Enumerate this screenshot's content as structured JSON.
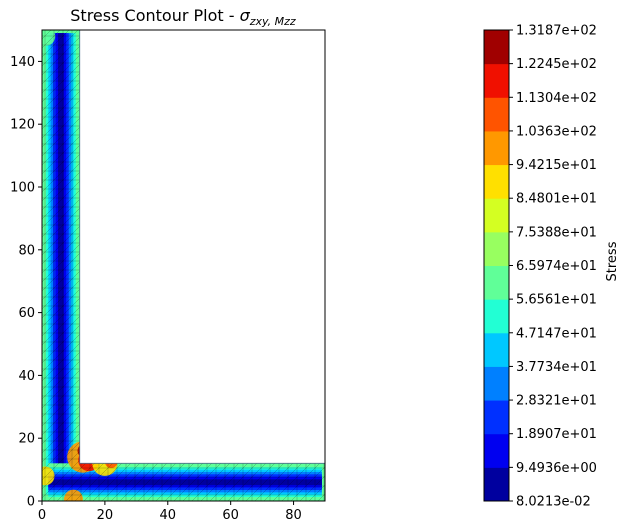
{
  "chart_data": {
    "type": "heatmap",
    "title": "Stress Contour Plot - ",
    "title_math": "σ",
    "title_subscript": "zxy, Mzz",
    "xlabel": "",
    "ylabel": "",
    "xlim": [
      0,
      90
    ],
    "ylim": [
      0,
      150
    ],
    "x_ticks": [
      "0",
      "20",
      "40",
      "60",
      "80"
    ],
    "y_ticks": [
      "0",
      "20",
      "40",
      "60",
      "80",
      "100",
      "120",
      "140"
    ],
    "colorbar": {
      "label": "Stress",
      "levels": [
        {
          "value": 0.080213,
          "label": "8.0213e-02",
          "color": "#00009f"
        },
        {
          "value": 9.4936,
          "label": "9.4936e+00",
          "color": "#0000f0"
        },
        {
          "value": 18.907,
          "label": "1.8907e+01",
          "color": "#0030ff"
        },
        {
          "value": 28.321,
          "label": "2.8321e+01",
          "color": "#0080ff"
        },
        {
          "value": 37.734,
          "label": "3.7734e+01",
          "color": "#00c8ff"
        },
        {
          "value": 47.147,
          "label": "4.7147e+01",
          "color": "#22ffd4"
        },
        {
          "value": 56.561,
          "label": "5.6561e+01",
          "color": "#60ff98"
        },
        {
          "value": 65.974,
          "label": "6.5974e+01",
          "color": "#98ff60"
        },
        {
          "value": 75.388,
          "label": "7.5388e+01",
          "color": "#d4ff22"
        },
        {
          "value": 84.801,
          "label": "8.4801e+01",
          "color": "#ffe000"
        },
        {
          "value": 94.215,
          "label": "9.4215e+01",
          "color": "#ff9800"
        },
        {
          "value": 103.63,
          "label": "1.0363e+02",
          "color": "#ff5400"
        },
        {
          "value": 113.04,
          "label": "1.1304e+02",
          "color": "#f01000"
        },
        {
          "value": 122.45,
          "label": "1.2245e+02",
          "color": "#a00000"
        },
        {
          "value": 131.87,
          "label": "1.3187e+02",
          "color": null
        }
      ]
    },
    "geometry": {
      "shape": "L-section",
      "vertical_leg": {
        "x": [
          0,
          12
        ],
        "y": [
          0,
          150
        ]
      },
      "horizontal_leg": {
        "x": [
          0,
          90
        ],
        "y": [
          0,
          12
        ]
      }
    },
    "grid": false,
    "colormap": "jet"
  }
}
